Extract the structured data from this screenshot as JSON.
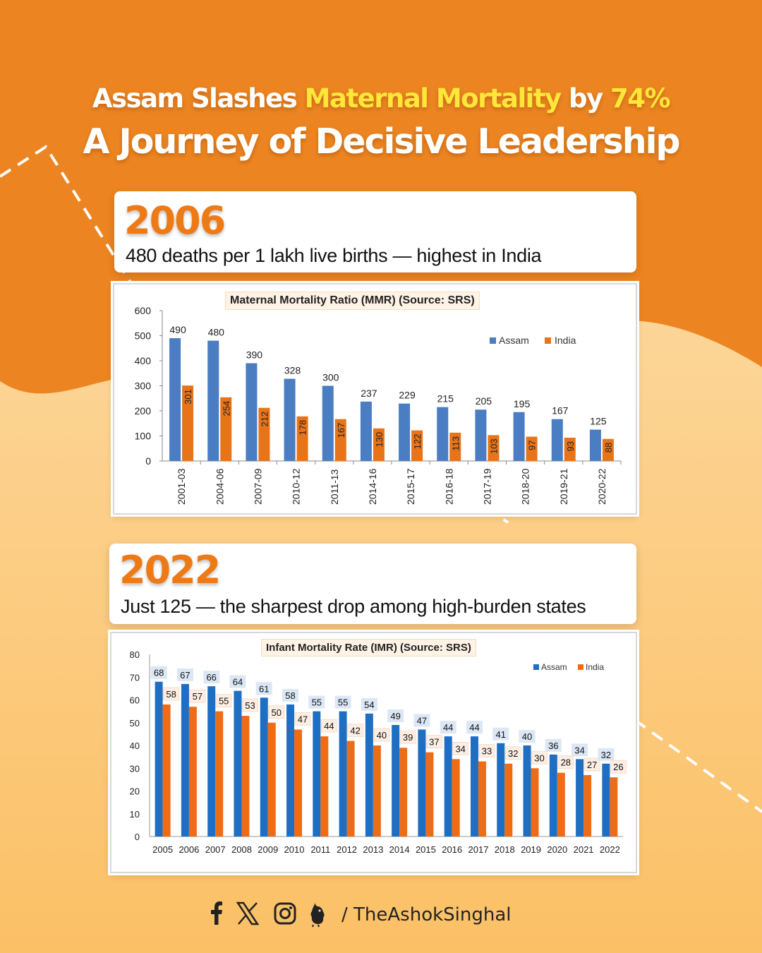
{
  "headline": {
    "line1_prefix": "Assam Slashes ",
    "line1_highlight": "Maternal Mortality",
    "line1_mid": " by ",
    "line1_percent": "74%",
    "line2": "A Journey of Decisive Leadership"
  },
  "card_2006": {
    "year": "2006",
    "text": "480 deaths per 1 lakh live births — highest in India"
  },
  "card_2022": {
    "year": "2022",
    "text": "Just 125 — the sharpest drop among high-burden states"
  },
  "colors": {
    "orange_bg": "#ec8521",
    "light_bg": "#fcd38a",
    "assam": "#4a7dc2",
    "india": "#e8741a",
    "imr_assam": "#1e6fc4",
    "imr_india": "#ef6c16",
    "highlight": "#ffe63a"
  },
  "chart_data": [
    {
      "type": "bar",
      "title": "Maternal Mortality Ratio (MMR) (Source: SRS)",
      "categories": [
        "2001-03",
        "2004-06",
        "2007-09",
        "2010-12",
        "2011-13",
        "2014-16",
        "2015-17",
        "2016-18",
        "2017-19",
        "2018-20",
        "2019-21",
        "2020-22"
      ],
      "series": [
        {
          "name": "Assam",
          "values": [
            490,
            480,
            390,
            328,
            300,
            237,
            229,
            215,
            205,
            195,
            167,
            125
          ]
        },
        {
          "name": "India",
          "values": [
            301,
            254,
            212,
            178,
            167,
            130,
            122,
            113,
            103,
            97,
            93,
            88
          ]
        }
      ],
      "yticks": [
        "0",
        "100",
        "200",
        "300",
        "400",
        "500",
        "600"
      ],
      "ylim": [
        0,
        600
      ],
      "legend": "top-right",
      "grid": false
    },
    {
      "type": "bar",
      "title": "Infant Mortality Rate (IMR) (Source: SRS)",
      "categories": [
        "2005",
        "2006",
        "2007",
        "2008",
        "2009",
        "2010",
        "2011",
        "2012",
        "2013",
        "2014",
        "2015",
        "2016",
        "2017",
        "2018",
        "2019",
        "2020",
        "2021",
        "2022"
      ],
      "series": [
        {
          "name": "Assam",
          "values": [
            68,
            67,
            66,
            64,
            61,
            58,
            55,
            55,
            54,
            49,
            47,
            44,
            44,
            41,
            40,
            36,
            34,
            32
          ]
        },
        {
          "name": "India",
          "values": [
            58,
            57,
            55,
            53,
            50,
            47,
            44,
            42,
            40,
            39,
            37,
            34,
            33,
            32,
            30,
            28,
            27,
            26
          ]
        }
      ],
      "yticks": [
        "0",
        "10",
        "20",
        "30",
        "40",
        "50",
        "60",
        "70",
        "80"
      ],
      "ylim": [
        0,
        80
      ],
      "legend": "top-right",
      "grid": false
    }
  ],
  "footer": {
    "icons": [
      "facebook-icon",
      "x-icon",
      "instagram-icon",
      "koo-icon"
    ],
    "handle": "/ TheAshokSinghal"
  }
}
